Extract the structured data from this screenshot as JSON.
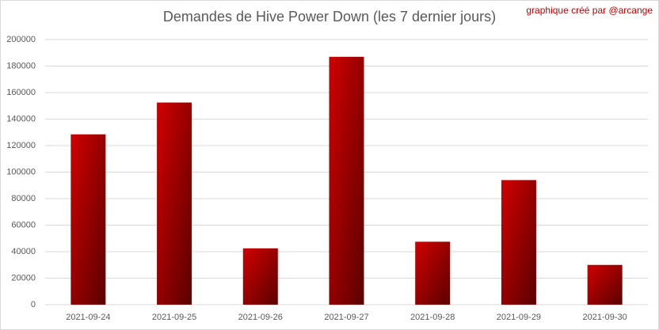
{
  "chart_data": {
    "type": "bar",
    "title": "Demandes de Hive Power Down (les 7 dernier jours)",
    "annotation": "graphique créé par @arcange",
    "categories": [
      "2021-09-24",
      "2021-09-25",
      "2021-09-26",
      "2021-09-27",
      "2021-09-28",
      "2021-09-29",
      "2021-09-30"
    ],
    "values": [
      128500,
      152500,
      42500,
      187000,
      47500,
      94000,
      30000
    ],
    "colors": [
      "#d00000",
      "#5a0000"
    ],
    "ylim": [
      0,
      200000
    ],
    "yticks": [
      0,
      20000,
      40000,
      60000,
      80000,
      100000,
      120000,
      140000,
      160000,
      180000,
      200000
    ],
    "grid": true
  }
}
